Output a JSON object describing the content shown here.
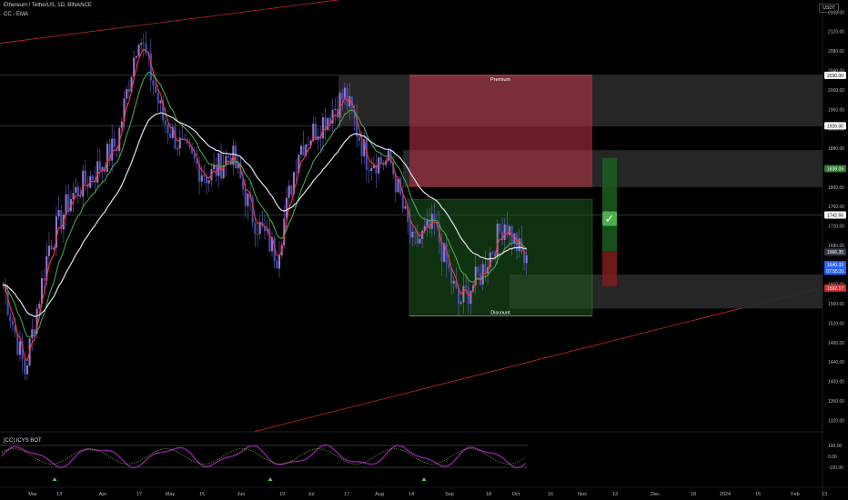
{
  "header": {
    "symbol_line": "Ethereum / TetherUS, 1D, BINANCE",
    "indicator_line": "CC - EMA",
    "currency_button": "USDT"
  },
  "price_tags": {
    "premium_top": "2030.00",
    "mid_level": "1926.00",
    "green_tag": "1838.09",
    "level_1740": "1742.55",
    "current": "1666.35",
    "last_price": "1640.33",
    "countdown": "07:55:31",
    "red_tag": "1592.17"
  },
  "zones": {
    "premium_label": "Premium",
    "discount_label": "Discount",
    "checkmark": "✓"
  },
  "indicator": {
    "label": "[CC] ICYS BOT",
    "ticks": [
      "100.00",
      "0.00",
      "-100.00"
    ]
  },
  "chart_data": {
    "type": "candlestick",
    "y_axis_ticks": [
      2160,
      2120,
      2080,
      2040,
      2000,
      1960,
      1920,
      1880,
      1840,
      1800,
      1760,
      1720,
      1680,
      1640,
      1600,
      1560,
      1520,
      1480,
      1440,
      1400,
      1360,
      1320
    ],
    "ylim": [
      1300,
      2185
    ],
    "x_axis_labels": [
      "Mar",
      "13",
      "Apr",
      "17",
      "May",
      "15",
      "Jun",
      "19",
      "Jul",
      "17",
      "Aug",
      "14",
      "Sep",
      "18",
      "Oct",
      "16",
      "Nov",
      "13",
      "Dec",
      "18",
      "2024",
      "15",
      "Feb",
      "13"
    ],
    "price_path": [
      {
        "x": "Mar 1",
        "close": 1600
      },
      {
        "x": "Mar 10",
        "close": 1420
      },
      {
        "x": "Mar 13",
        "close": 1680
      },
      {
        "x": "Mar 22",
        "close": 1780
      },
      {
        "x": "Apr 1",
        "close": 1830
      },
      {
        "x": "Apr 8",
        "close": 1890
      },
      {
        "x": "Apr 15",
        "close": 2120
      },
      {
        "x": "Apr 20",
        "close": 1940
      },
      {
        "x": "May 1",
        "close": 1870
      },
      {
        "x": "May 15",
        "close": 1820
      },
      {
        "x": "Jun 1",
        "close": 1870
      },
      {
        "x": "Jun 10",
        "close": 1740
      },
      {
        "x": "Jun 15",
        "close": 1660
      },
      {
        "x": "Jun 22",
        "close": 1880
      },
      {
        "x": "Jul 1",
        "close": 1930
      },
      {
        "x": "Jul 13",
        "close": 1990
      },
      {
        "x": "Jul 25",
        "close": 1860
      },
      {
        "x": "Aug 10",
        "close": 1850
      },
      {
        "x": "Aug 17",
        "close": 1680
      },
      {
        "x": "Aug 29",
        "close": 1720
      },
      {
        "x": "Sep 11",
        "close": 1560
      },
      {
        "x": "Sep 20",
        "close": 1620
      },
      {
        "x": "Oct 1",
        "close": 1730
      },
      {
        "x": "Oct 6",
        "close": 1640
      }
    ],
    "series": [
      {
        "name": "",
        "color": "#f23645"
      },
      {
        "name": "",
        "color": "#4caf50"
      },
      {
        "name": "",
        "color": "#e0e3eb"
      }
    ],
    "zones": [
      {
        "label": "Premium",
        "top": 2030,
        "bottom": 1800,
        "color": "#c2334a"
      },
      {
        "label": "Discount",
        "top": 1775,
        "bottom": 1535,
        "color": "#1e5a1e"
      }
    ],
    "horizontal_levels": [
      2030,
      1926,
      1742.55
    ],
    "grid": false
  }
}
